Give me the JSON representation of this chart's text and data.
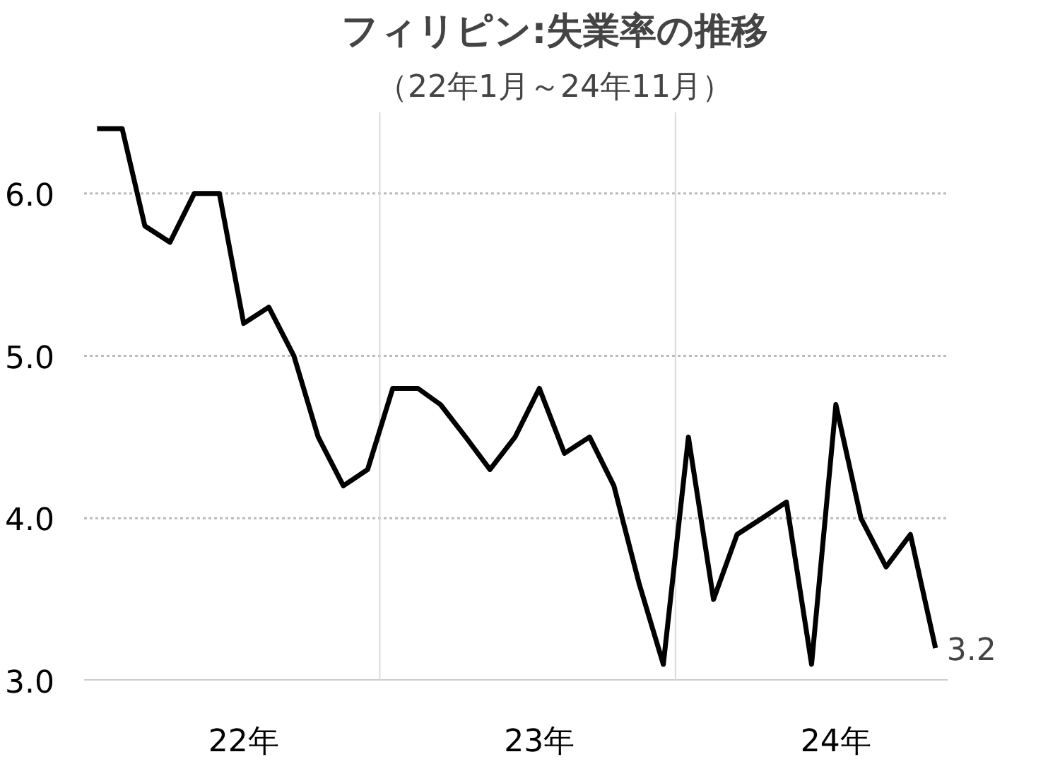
{
  "chart_data": {
    "type": "line",
    "title": "フィリピン:失業率の推移",
    "subtitle": "（22年1月～24年11月）",
    "x": [
      "2022-01",
      "2022-02",
      "2022-03",
      "2022-04",
      "2022-05",
      "2022-06",
      "2022-07",
      "2022-08",
      "2022-09",
      "2022-10",
      "2022-11",
      "2022-12",
      "2023-01",
      "2023-02",
      "2023-03",
      "2023-04",
      "2023-05",
      "2023-06",
      "2023-07",
      "2023-08",
      "2023-09",
      "2023-10",
      "2023-11",
      "2023-12",
      "2024-01",
      "2024-02",
      "2024-03",
      "2024-04",
      "2024-05",
      "2024-06",
      "2024-07",
      "2024-08",
      "2024-09",
      "2024-10",
      "2024-11"
    ],
    "series": [
      {
        "color": "#000000",
        "values": [
          6.4,
          6.4,
          5.8,
          5.7,
          6.0,
          6.0,
          5.2,
          5.3,
          5.0,
          4.5,
          4.2,
          4.3,
          4.8,
          4.8,
          4.7,
          4.5,
          4.3,
          4.5,
          4.8,
          4.4,
          4.5,
          4.2,
          3.6,
          3.1,
          4.5,
          3.5,
          3.9,
          4.0,
          4.1,
          3.1,
          4.7,
          4.0,
          3.7,
          3.9,
          3.2
        ]
      }
    ],
    "xlim": [
      "2021-12-16",
      "2024-11-16"
    ],
    "xticks": [
      {
        "value": "2022-07-01",
        "label": "22年"
      },
      {
        "value": "2023-07-01",
        "label": "23年"
      },
      {
        "value": "2024-07-01",
        "label": "24年"
      }
    ],
    "ylim": [
      3.0,
      6.5
    ],
    "yticks": [
      {
        "value": 3,
        "label": "3.0"
      },
      {
        "value": 4,
        "label": "4.0"
      },
      {
        "value": 5,
        "label": "5.0"
      },
      {
        "value": 6,
        "label": "6.0"
      }
    ],
    "grid": "y",
    "marker": "none",
    "line_style": "solid",
    "ref_lines": [
      {
        "axis": "x",
        "value": "2022-12-16",
        "color": "#d9d9d9",
        "line_style": "solid"
      },
      {
        "axis": "x",
        "value": "2023-12-16",
        "color": "#d9d9d9",
        "line_style": "solid"
      }
    ],
    "annotations": [
      {
        "text": "3.2",
        "x": "2024-11",
        "y": 3.2
      }
    ]
  }
}
